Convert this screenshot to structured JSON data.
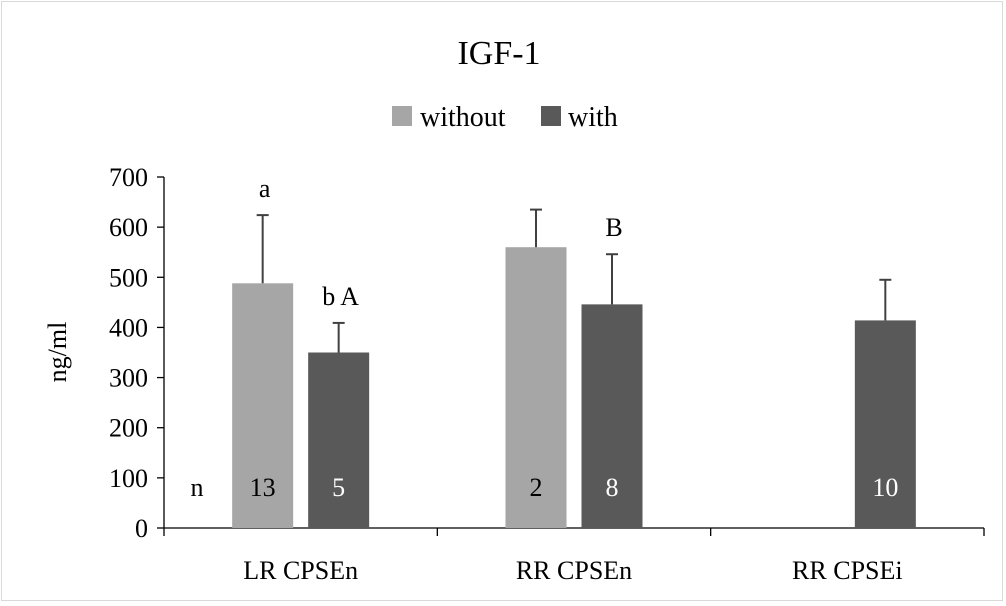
{
  "chart_data": {
    "type": "bar",
    "title": "IGF-1",
    "ylabel": "ng/ml",
    "xlabel": "",
    "ylim": [
      0,
      700
    ],
    "yticks": [
      0,
      100,
      200,
      300,
      400,
      500,
      600,
      700
    ],
    "grid": false,
    "legend_position": "top-center",
    "categories": [
      "LR CPSEn",
      "RR CPSEn",
      "RR CPSEi"
    ],
    "series": [
      {
        "name": "without",
        "color": "#a6a6a6",
        "values": [
          488,
          560,
          null
        ],
        "errors": [
          136,
          75,
          null
        ],
        "n_labels": [
          "13",
          "2",
          ""
        ],
        "sig_labels": [
          "a",
          "",
          ""
        ]
      },
      {
        "name": "with",
        "color": "#595959",
        "values": [
          350,
          446,
          414
        ],
        "errors": [
          59,
          100,
          81
        ],
        "n_labels": [
          "5",
          "8",
          "10"
        ],
        "sig_labels": [
          "b A",
          "B",
          ""
        ]
      }
    ],
    "n_row_label": "n"
  }
}
